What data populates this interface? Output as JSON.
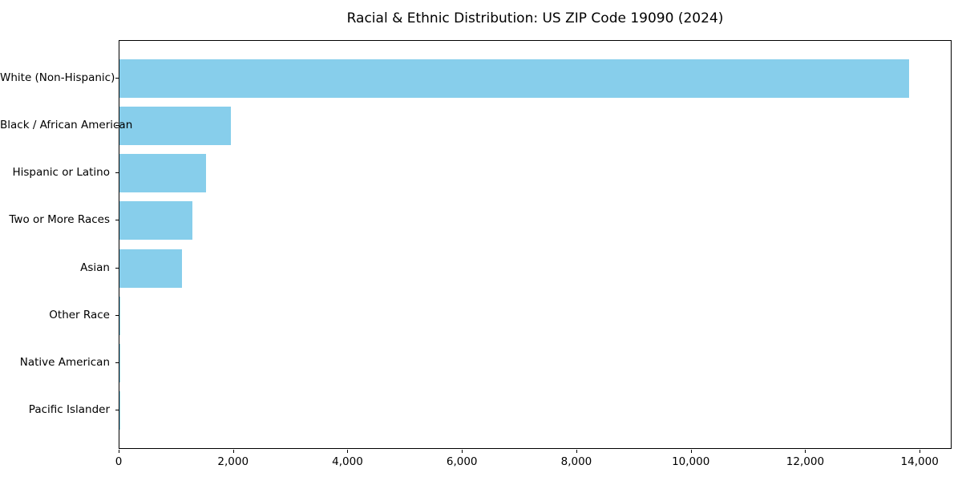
{
  "chart_data": {
    "type": "bar",
    "orientation": "horizontal",
    "title": "Racial & Ethnic Distribution: US ZIP Code 19090 (2024)",
    "categories": [
      "White (Non-Hispanic)",
      "Black / African American",
      "Hispanic or Latino",
      "Two or More Races",
      "Asian",
      "Other Race",
      "Native American",
      "Pacific Islander"
    ],
    "values": [
      13800,
      1950,
      1510,
      1270,
      1090,
      20,
      10,
      5
    ],
    "xlabel": "",
    "ylabel": "",
    "xlim": [
      0,
      14530
    ],
    "xticks": [
      0,
      2000,
      4000,
      6000,
      8000,
      10000,
      12000,
      14000
    ],
    "xtick_labels": [
      "0",
      "2,000",
      "4,000",
      "6,000",
      "8,000",
      "10,000",
      "12,000",
      "14,000"
    ],
    "bar_color": "#87CEEB",
    "axis_color": "#000000",
    "background_color": "#ffffff",
    "grid": false,
    "legend": "none"
  }
}
